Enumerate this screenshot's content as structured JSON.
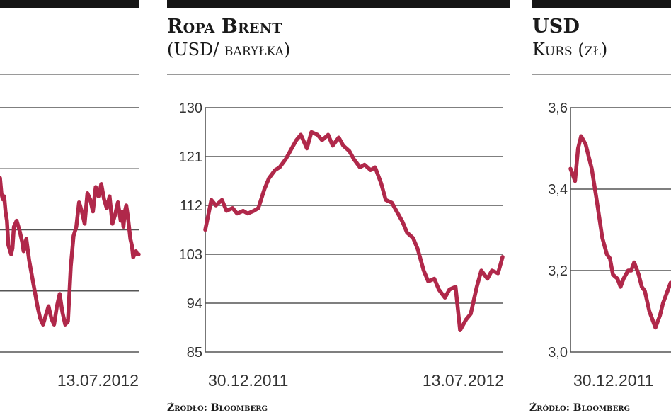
{
  "colors": {
    "line": "#b0284a",
    "grid": "#555555",
    "bar": "#151515",
    "rule": "#9a9a9a"
  },
  "left_panel": {
    "x_end_label": "13.07.2012",
    "chart_data": {
      "type": "line",
      "ylim": [
        0,
        4
      ],
      "grid": true,
      "x_end_label": "13.07.2012",
      "series": [
        {
          "x": [
            0,
            0.01,
            0.02,
            0.03,
            0.04,
            0.05,
            0.06,
            0.08,
            0.09,
            0.1,
            0.12,
            0.14,
            0.16,
            0.17,
            0.19,
            0.21,
            0.23,
            0.25,
            0.27,
            0.29,
            0.31,
            0.33,
            0.35,
            0.37,
            0.39,
            0.41,
            0.43,
            0.45,
            0.47,
            0.49,
            0.51,
            0.53,
            0.55,
            0.57,
            0.59,
            0.61,
            0.63,
            0.65,
            0.67,
            0.69,
            0.71,
            0.73,
            0.75,
            0.77,
            0.79,
            0.81,
            0.83,
            0.85,
            0.87,
            0.88,
            0.89,
            0.9,
            0.91,
            0.92,
            0.93,
            0.94,
            0.95,
            0.96,
            0.97,
            0.98,
            0.99,
            1.0
          ],
          "y": [
            2.85,
            2.6,
            2.5,
            2.55,
            2.3,
            2.15,
            1.75,
            1.6,
            1.7,
            2.05,
            2.15,
            2.0,
            1.8,
            1.65,
            1.85,
            1.5,
            1.25,
            1.0,
            0.75,
            0.55,
            0.45,
            0.6,
            0.75,
            0.55,
            0.45,
            0.75,
            0.95,
            0.65,
            0.45,
            0.5,
            1.4,
            1.9,
            2.05,
            2.45,
            2.3,
            2.1,
            2.6,
            2.5,
            2.3,
            2.7,
            2.55,
            2.75,
            2.5,
            2.35,
            2.55,
            2.1,
            2.25,
            2.45,
            2.15,
            2.3,
            2.05,
            2.3,
            2.4,
            2.25,
            2.05,
            1.85,
            1.75,
            1.55,
            1.6,
            1.65,
            1.6,
            1.6
          ]
        }
      ]
    }
  },
  "middle_panel": {
    "title": "Ropa Brent",
    "subtitle": "(USD/ baryłka)",
    "source": "Źródło: Bloomberg",
    "chart_data": {
      "type": "line",
      "title": "Ropa Brent",
      "subtitle": "(USD/ baryłka)",
      "ylim": [
        85,
        130
      ],
      "yticks": [
        85,
        94,
        103,
        112,
        121,
        130
      ],
      "grid": true,
      "x_start_label": "30.12.2011",
      "x_end_label": "13.07.2012",
      "series": [
        {
          "x": [
            "2011-12-30",
            "2012-01-03",
            "2012-01-06",
            "2012-01-10",
            "2012-01-13",
            "2012-01-17",
            "2012-01-20",
            "2012-01-24",
            "2012-01-27",
            "2012-01-31",
            "2012-02-03",
            "2012-02-07",
            "2012-02-10",
            "2012-02-14",
            "2012-02-17",
            "2012-02-21",
            "2012-02-24",
            "2012-02-28",
            "2012-03-02",
            "2012-03-06",
            "2012-03-09",
            "2012-03-13",
            "2012-03-16",
            "2012-03-20",
            "2012-03-23",
            "2012-03-27",
            "2012-03-30",
            "2012-04-03",
            "2012-04-06",
            "2012-04-10",
            "2012-04-13",
            "2012-04-17",
            "2012-04-20",
            "2012-04-24",
            "2012-04-27",
            "2012-05-01",
            "2012-05-04",
            "2012-05-08",
            "2012-05-11",
            "2012-05-15",
            "2012-05-18",
            "2012-05-22",
            "2012-05-25",
            "2012-05-29",
            "2012-06-01",
            "2012-06-05",
            "2012-06-08",
            "2012-06-12",
            "2012-06-15",
            "2012-06-19",
            "2012-06-22",
            "2012-06-26",
            "2012-06-29",
            "2012-07-03",
            "2012-07-06",
            "2012-07-10",
            "2012-07-13"
          ],
          "y": [
            107.5,
            113,
            112,
            113,
            111,
            111.5,
            110.5,
            111,
            110.5,
            111,
            111.5,
            115,
            117,
            118.5,
            119,
            120.5,
            122,
            124,
            125,
            122.5,
            125.5,
            125,
            124,
            125,
            123,
            124.5,
            123,
            122,
            120.5,
            119,
            119.5,
            118.5,
            119,
            116,
            113,
            112.5,
            111,
            109,
            107,
            106,
            104,
            100,
            98,
            98.5,
            96.5,
            95,
            96.5,
            97,
            89,
            91,
            92,
            97,
            100,
            98.5,
            100,
            99.5,
            102.5
          ]
        }
      ]
    }
  },
  "right_panel": {
    "title": "USD",
    "subtitle": "Kurs (zł)",
    "source": "Źródło: Bloomberg",
    "chart_data": {
      "type": "line",
      "title": "USD",
      "subtitle": "Kurs (zł)",
      "ylim": [
        3.0,
        3.6
      ],
      "yticks": [
        "3,0",
        "3,2",
        "3,4",
        "3,6"
      ],
      "grid": true,
      "x_start_label": "30.12.2011",
      "series": [
        {
          "x": [
            "2011-12-30",
            "2012-01-02",
            "2012-01-04",
            "2012-01-06",
            "2012-01-09",
            "2012-01-11",
            "2012-01-13",
            "2012-01-16",
            "2012-01-18",
            "2012-01-20",
            "2012-01-23",
            "2012-01-25",
            "2012-01-27",
            "2012-01-30",
            "2012-02-01",
            "2012-02-03",
            "2012-02-06",
            "2012-02-08",
            "2012-02-10",
            "2012-02-13",
            "2012-02-15",
            "2012-02-17",
            "2012-02-20",
            "2012-02-22",
            "2012-02-24",
            "2012-02-27",
            "2012-02-29",
            "2012-03-02",
            "2012-03-05",
            "2012-03-07",
            "2012-03-09"
          ],
          "y": [
            3.45,
            3.42,
            3.5,
            3.53,
            3.51,
            3.48,
            3.45,
            3.38,
            3.33,
            3.28,
            3.24,
            3.23,
            3.19,
            3.18,
            3.16,
            3.18,
            3.2,
            3.2,
            3.22,
            3.19,
            3.16,
            3.15,
            3.1,
            3.08,
            3.06,
            3.09,
            3.12,
            3.14,
            3.17,
            3.16,
            3.17
          ]
        }
      ]
    }
  }
}
